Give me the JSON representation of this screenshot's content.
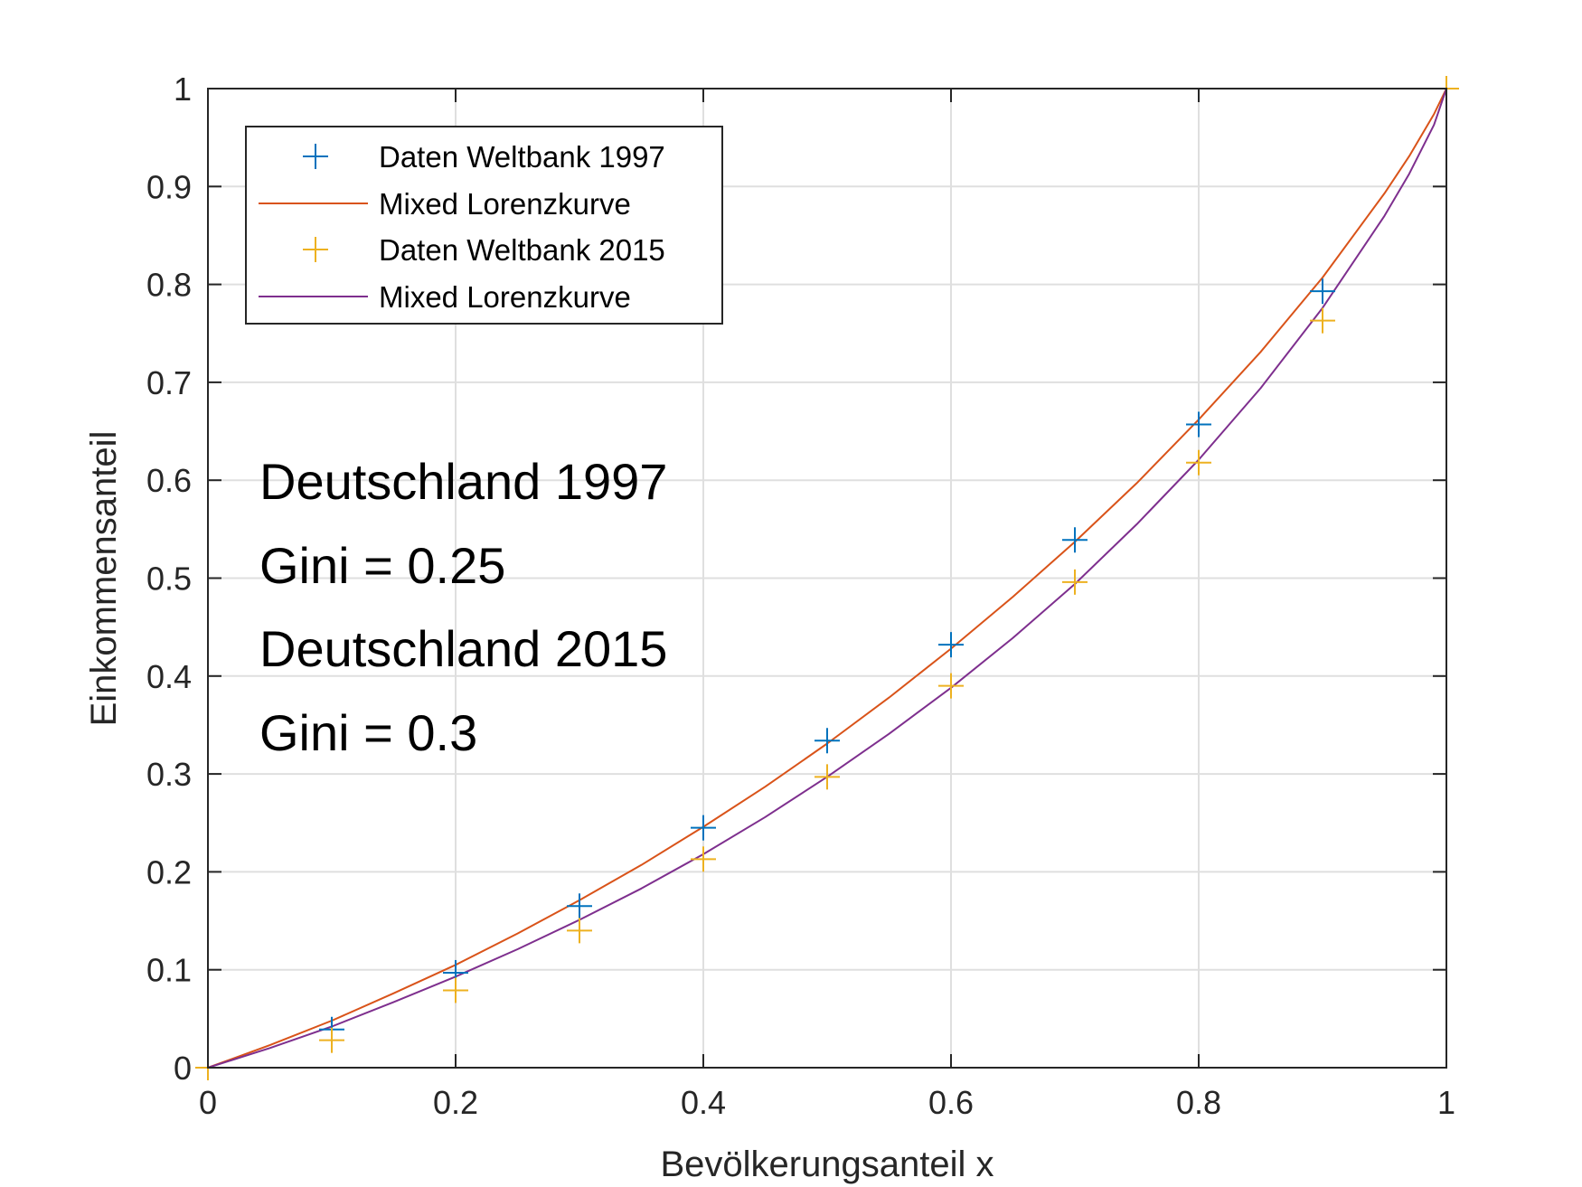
{
  "chart_data": {
    "type": "line",
    "xlabel": "Bevölkerungsanteil x",
    "ylabel": "Einkommensanteil",
    "xlim": [
      0,
      1
    ],
    "ylim": [
      0,
      1
    ],
    "xticks": [
      "0",
      "0.2",
      "0.4",
      "0.6",
      "0.8",
      "1"
    ],
    "yticks": [
      "0",
      "0.1",
      "0.2",
      "0.3",
      "0.4",
      "0.5",
      "0.6",
      "0.7",
      "0.8",
      "0.9",
      "1"
    ],
    "grid": true,
    "legend_position": "top-left",
    "series": [
      {
        "name": "Daten Weltbank 1997",
        "kind": "scatter",
        "marker": "plus",
        "color": "#0072BD",
        "x": [
          0.1,
          0.2,
          0.3,
          0.4,
          0.5,
          0.6,
          0.7,
          0.8,
          0.9
        ],
        "y": [
          0.039,
          0.097,
          0.165,
          0.245,
          0.334,
          0.432,
          0.539,
          0.657,
          0.793
        ]
      },
      {
        "name": "Mixed Lorenzkurve",
        "kind": "line",
        "color": "#D95319",
        "x": [
          0,
          0.05,
          0.1,
          0.15,
          0.2,
          0.25,
          0.3,
          0.35,
          0.4,
          0.45,
          0.5,
          0.55,
          0.6,
          0.65,
          0.7,
          0.75,
          0.8,
          0.85,
          0.9,
          0.95,
          0.97,
          0.99,
          1
        ],
        "y": [
          0,
          0.023,
          0.048,
          0.076,
          0.105,
          0.137,
          0.171,
          0.207,
          0.246,
          0.287,
          0.331,
          0.378,
          0.428,
          0.481,
          0.537,
          0.597,
          0.662,
          0.731,
          0.807,
          0.893,
          0.931,
          0.974,
          1.0
        ]
      },
      {
        "name": "Daten Weltbank 2015",
        "kind": "scatter",
        "marker": "plus",
        "color": "#EDB120",
        "x": [
          0,
          0.1,
          0.2,
          0.3,
          0.4,
          0.5,
          0.6,
          0.7,
          0.8,
          0.9,
          1
        ],
        "y": [
          0,
          0.028,
          0.079,
          0.14,
          0.213,
          0.297,
          0.39,
          0.496,
          0.618,
          0.763,
          1.0
        ]
      },
      {
        "name": "Mixed Lorenzkurve",
        "kind": "line",
        "color": "#7E2F8E",
        "x": [
          0,
          0.05,
          0.1,
          0.15,
          0.2,
          0.25,
          0.3,
          0.35,
          0.4,
          0.45,
          0.5,
          0.55,
          0.6,
          0.65,
          0.7,
          0.75,
          0.8,
          0.85,
          0.9,
          0.95,
          0.97,
          0.99,
          1
        ],
        "y": [
          0,
          0.02,
          0.042,
          0.067,
          0.093,
          0.121,
          0.151,
          0.183,
          0.218,
          0.256,
          0.297,
          0.341,
          0.388,
          0.439,
          0.494,
          0.555,
          0.621,
          0.694,
          0.776,
          0.87,
          0.913,
          0.963,
          1.0
        ]
      }
    ],
    "annotations": [
      "Deutschland 1997",
      "Gini = 0.25",
      "Deutschland 2015",
      "Gini = 0.3"
    ]
  }
}
